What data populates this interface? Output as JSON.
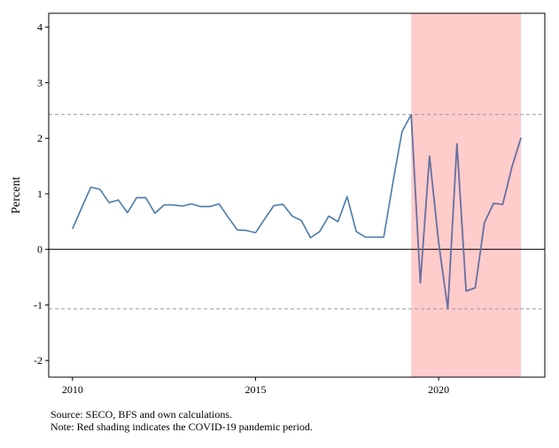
{
  "chart_data": {
    "type": "line",
    "ylabel": "Percent",
    "xlim": [
      2009.35,
      2022.9
    ],
    "ylim": [
      -2.3,
      4.25
    ],
    "x_ticks": [
      2010,
      2015,
      2020
    ],
    "y_ticks": [
      -2,
      -1,
      0,
      1,
      2,
      3,
      4
    ],
    "grid": false,
    "shaded_region": {
      "x_start": 2019.25,
      "x_end": 2022.25,
      "color": "#ffcccc"
    },
    "reference_lines": [
      {
        "y": 0,
        "style": "solid"
      },
      {
        "y": 2.43,
        "style": "dashed"
      },
      {
        "y": -1.07,
        "style": "dashed"
      }
    ],
    "series": [
      {
        "color": "#4a7aaa",
        "covid_color": "#6670a0",
        "x": [
          2010.0,
          2010.25,
          2010.5,
          2010.75,
          2011.0,
          2011.25,
          2011.5,
          2011.75,
          2012.0,
          2012.25,
          2012.5,
          2012.75,
          2013.0,
          2013.25,
          2013.5,
          2013.75,
          2014.0,
          2014.25,
          2014.5,
          2014.75,
          2015.0,
          2015.25,
          2015.5,
          2015.75,
          2016.0,
          2016.25,
          2016.5,
          2016.75,
          2017.0,
          2017.25,
          2017.5,
          2017.75,
          2018.0,
          2018.25,
          2018.5,
          2018.75,
          2019.0,
          2019.25,
          2019.5,
          2019.75,
          2020.0,
          2020.25,
          2020.5,
          2020.75,
          2021.0,
          2021.25,
          2021.5,
          2021.75,
          2022.0,
          2022.25
        ],
        "y": [
          0.37,
          0.75,
          1.12,
          1.08,
          0.84,
          0.89,
          0.66,
          0.93,
          0.93,
          0.65,
          0.8,
          0.8,
          0.78,
          0.82,
          0.77,
          0.77,
          0.82,
          0.58,
          0.35,
          0.34,
          0.3,
          0.55,
          0.79,
          0.81,
          0.6,
          0.52,
          0.21,
          0.32,
          0.6,
          0.5,
          0.95,
          0.32,
          0.22,
          0.22,
          0.22,
          1.2,
          2.12,
          2.43,
          -0.6,
          1.68,
          0.12,
          -1.07,
          1.9,
          -0.75,
          -0.69,
          0.48,
          0.83,
          0.81,
          1.48,
          2.01
        ]
      }
    ]
  },
  "notes": {
    "source": "Source: SECO, BFS and own calculations.",
    "note": "Note: Red shading indicates the COVID-19 pandemic period."
  }
}
